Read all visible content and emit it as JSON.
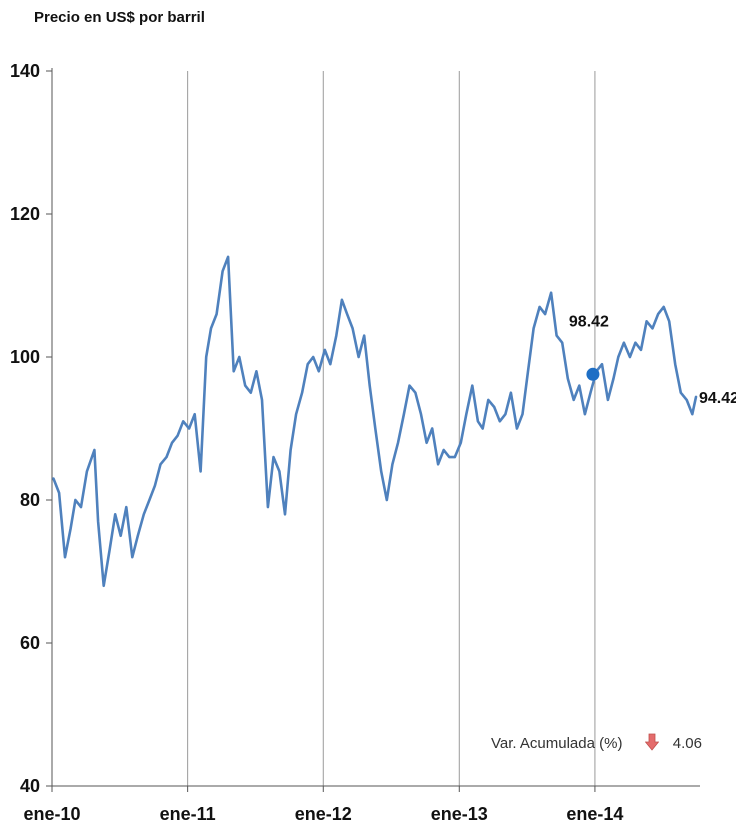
{
  "chart_data": {
    "type": "line",
    "ylabel": "Precio en US$ por barril",
    "xlim": [
      "2010-01-01",
      "2014-09-30"
    ],
    "ylim": [
      40,
      140
    ],
    "yticks": [
      40,
      60,
      80,
      100,
      120,
      140
    ],
    "xticks": [
      {
        "label": "ene-10",
        "date": "2010-01-01"
      },
      {
        "label": "ene-11",
        "date": "2011-01-01"
      },
      {
        "label": "ene-12",
        "date": "2012-01-01"
      },
      {
        "label": "ene-13",
        "date": "2013-01-01"
      },
      {
        "label": "ene-14",
        "date": "2014-01-01"
      }
    ],
    "grid": "vertical",
    "line_color": "#4F81BD",
    "marker_color": "#1F6FC5",
    "series": [
      {
        "x": [
          "2010-01-05",
          "2010-01-20",
          "2010-02-05",
          "2010-02-20",
          "2010-03-05",
          "2010-03-20",
          "2010-04-05",
          "2010-04-25",
          "2010-05-05",
          "2010-05-20",
          "2010-06-05",
          "2010-06-20",
          "2010-07-05",
          "2010-07-20",
          "2010-08-05",
          "2010-08-20",
          "2010-09-05",
          "2010-09-20",
          "2010-10-05",
          "2010-10-20",
          "2010-11-05",
          "2010-11-20",
          "2010-12-05",
          "2010-12-20",
          "2011-01-05",
          "2011-01-20",
          "2011-02-05",
          "2011-02-20",
          "2011-03-05",
          "2011-03-20",
          "2011-04-05",
          "2011-04-20",
          "2011-05-05",
          "2011-05-20",
          "2011-06-05",
          "2011-06-20",
          "2011-07-05",
          "2011-07-20",
          "2011-08-05",
          "2011-08-20",
          "2011-09-05",
          "2011-09-20",
          "2011-10-05",
          "2011-10-20",
          "2011-11-05",
          "2011-11-20",
          "2011-12-05",
          "2011-12-20",
          "2012-01-05",
          "2012-01-20",
          "2012-02-05",
          "2012-02-20",
          "2012-03-05",
          "2012-03-20",
          "2012-04-05",
          "2012-04-20",
          "2012-05-05",
          "2012-05-20",
          "2012-06-05",
          "2012-06-20",
          "2012-07-05",
          "2012-07-20",
          "2012-08-05",
          "2012-08-20",
          "2012-09-05",
          "2012-09-20",
          "2012-10-05",
          "2012-10-20",
          "2012-11-05",
          "2012-11-20",
          "2012-12-05",
          "2012-12-20",
          "2013-01-05",
          "2013-01-20",
          "2013-02-05",
          "2013-02-20",
          "2013-03-05",
          "2013-03-20",
          "2013-04-05",
          "2013-04-20",
          "2013-05-05",
          "2013-05-20",
          "2013-06-05",
          "2013-06-20",
          "2013-07-05",
          "2013-07-20",
          "2013-08-05",
          "2013-08-20",
          "2013-09-05",
          "2013-09-20",
          "2013-10-05",
          "2013-10-20",
          "2013-11-05",
          "2013-11-20",
          "2013-12-05",
          "2013-12-20",
          "2014-01-05",
          "2014-01-20",
          "2014-02-05",
          "2014-02-20",
          "2014-03-05",
          "2014-03-20",
          "2014-04-05",
          "2014-04-20",
          "2014-05-05",
          "2014-05-20",
          "2014-06-05",
          "2014-06-20",
          "2014-07-05",
          "2014-07-20",
          "2014-08-05",
          "2014-08-20",
          "2014-09-05",
          "2014-09-20",
          "2014-09-30"
        ],
        "values": [
          83,
          81,
          72,
          76,
          80,
          79,
          84,
          87,
          77,
          68,
          73,
          78,
          75,
          79,
          72,
          75,
          78,
          80,
          82,
          85,
          86,
          88,
          89,
          91,
          90,
          92,
          84,
          100,
          104,
          106,
          112,
          114,
          98,
          100,
          96,
          95,
          98,
          94,
          79,
          86,
          84,
          78,
          87,
          92,
          95,
          99,
          100,
          98,
          101,
          99,
          103,
          108,
          106,
          104,
          100,
          103,
          96,
          90,
          84,
          80,
          85,
          88,
          92,
          96,
          95,
          92,
          88,
          90,
          85,
          87,
          86,
          86,
          88,
          92,
          96,
          91,
          90,
          94,
          93,
          91,
          92,
          95,
          90,
          92,
          98,
          104,
          107,
          106,
          109,
          103,
          102,
          97,
          94,
          96,
          92,
          95,
          98,
          99,
          94,
          97,
          100,
          102,
          100,
          102,
          101,
          105,
          104,
          106,
          107,
          105,
          99,
          95,
          94,
          92,
          94.42
        ]
      }
    ],
    "annotations": [
      {
        "label": "98.42",
        "x": "2014-01-01",
        "y": 98.42,
        "marker": true
      },
      {
        "label": "94.42",
        "x": "2014-09-30",
        "y": 94.42,
        "marker": false
      }
    ],
    "note": {
      "label": "Var. Acumulada (%)",
      "direction": "down",
      "value": "4.06",
      "arrow_color": "#E46C6C"
    }
  }
}
